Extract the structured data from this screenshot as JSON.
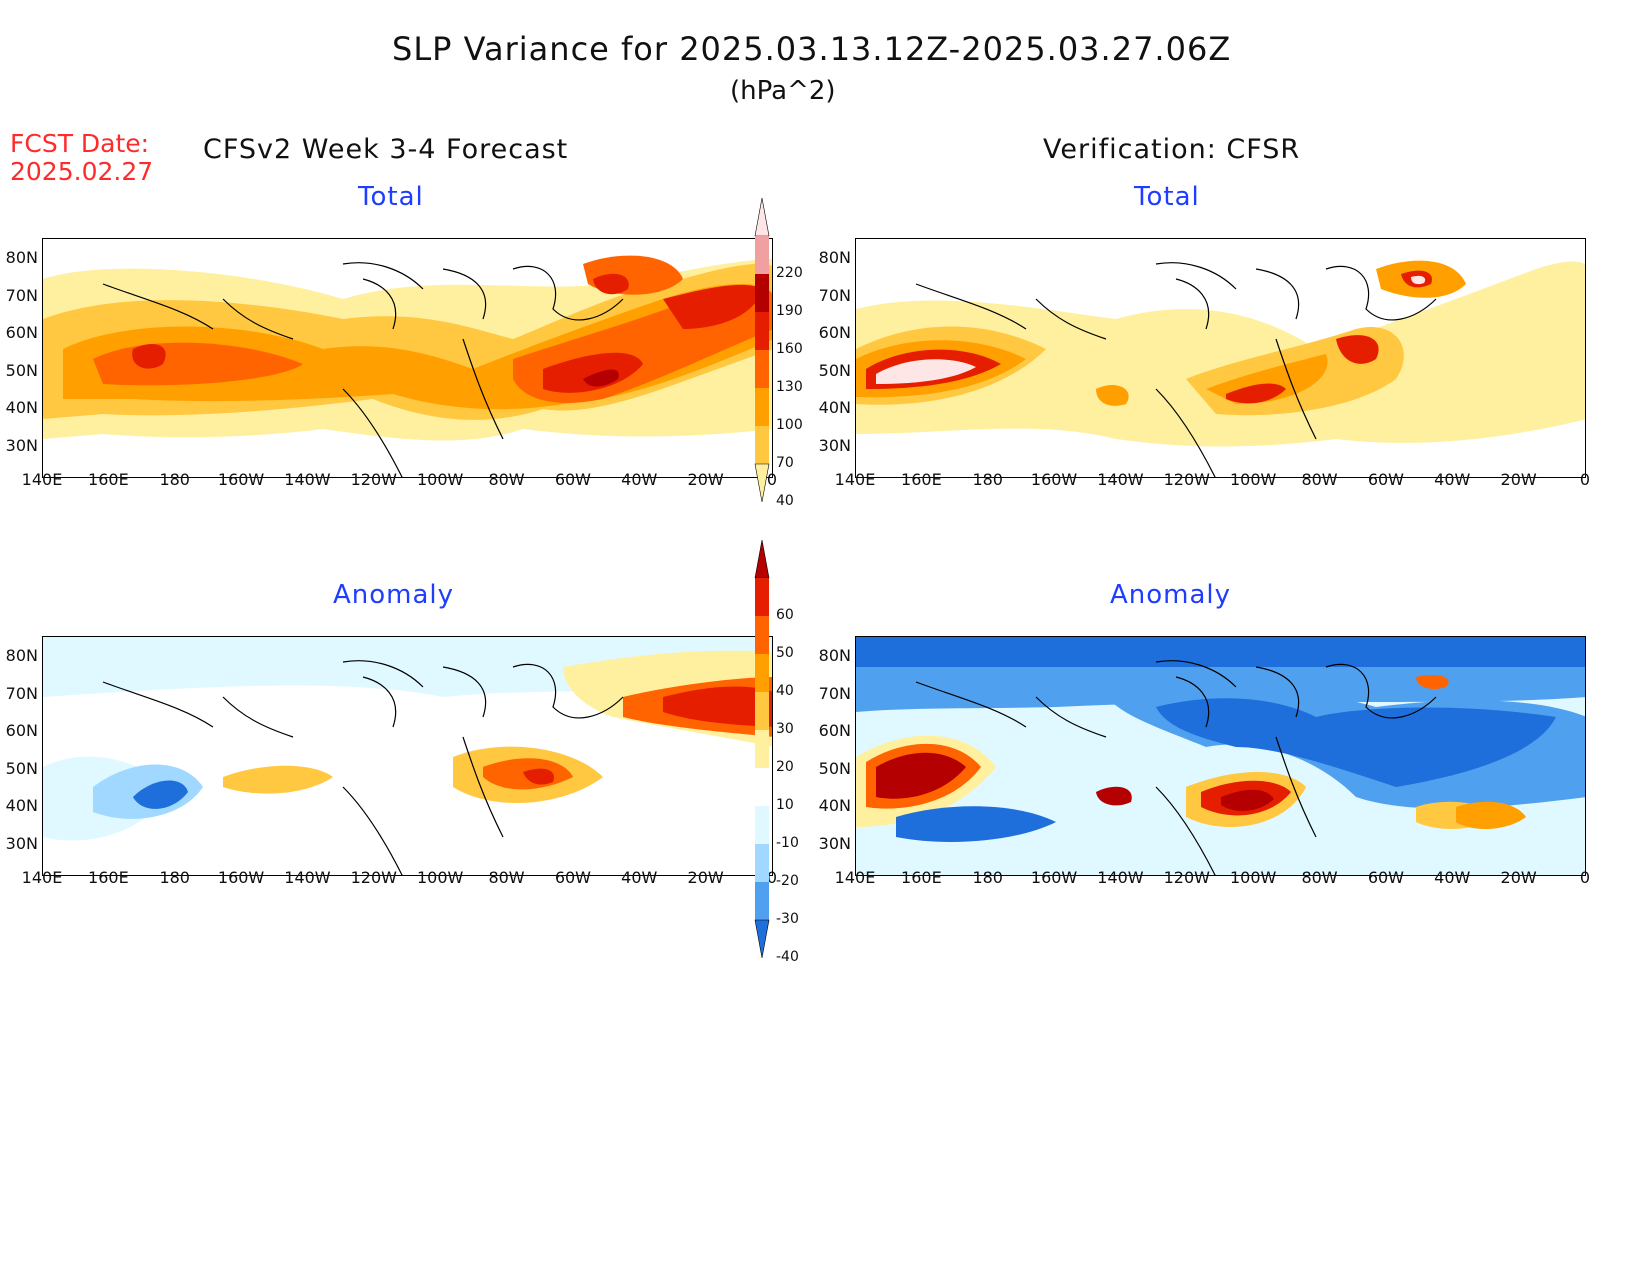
{
  "header": {
    "title": "SLP Variance for 2025.03.13.12Z-2025.03.27.06Z",
    "units": "(hPa^2)"
  },
  "fcst": {
    "label": "FCST Date:",
    "date": "2025.02.27"
  },
  "columns": {
    "left": "CFSv2 Week 3-4 Forecast",
    "right": "Verification: CFSR"
  },
  "panels": {
    "total_left": "Total",
    "total_right": "Total",
    "anomaly_left": "Anomaly",
    "anomaly_right": "Anomaly"
  },
  "axes": {
    "lat_labels": [
      "80N",
      "70N",
      "60N",
      "50N",
      "40N",
      "30N"
    ],
    "lon_labels": [
      "140E",
      "160E",
      "180",
      "160W",
      "140W",
      "120W",
      "100W",
      "80W",
      "60W",
      "40W",
      "20W",
      "0"
    ]
  },
  "colorbars": {
    "total": {
      "levels": [
        "40",
        "70",
        "100",
        "130",
        "160",
        "190",
        "220"
      ],
      "colors": [
        "#fff0a0",
        "#ffc840",
        "#ffa000",
        "#ff6400",
        "#e61e00",
        "#b40000",
        "#f0a0a0",
        "#ffe6e6"
      ]
    },
    "anomaly": {
      "levels": [
        "60",
        "50",
        "40",
        "30",
        "20",
        "10",
        "-10",
        "-20",
        "-30",
        "-40"
      ],
      "colors": [
        "#b40000",
        "#e61e00",
        "#ff6400",
        "#ffa000",
        "#ffc840",
        "#fff0a0",
        "#ffffff",
        "#e0f8ff",
        "#a0d8ff",
        "#50a0f0",
        "#1e6edc"
      ]
    }
  }
}
